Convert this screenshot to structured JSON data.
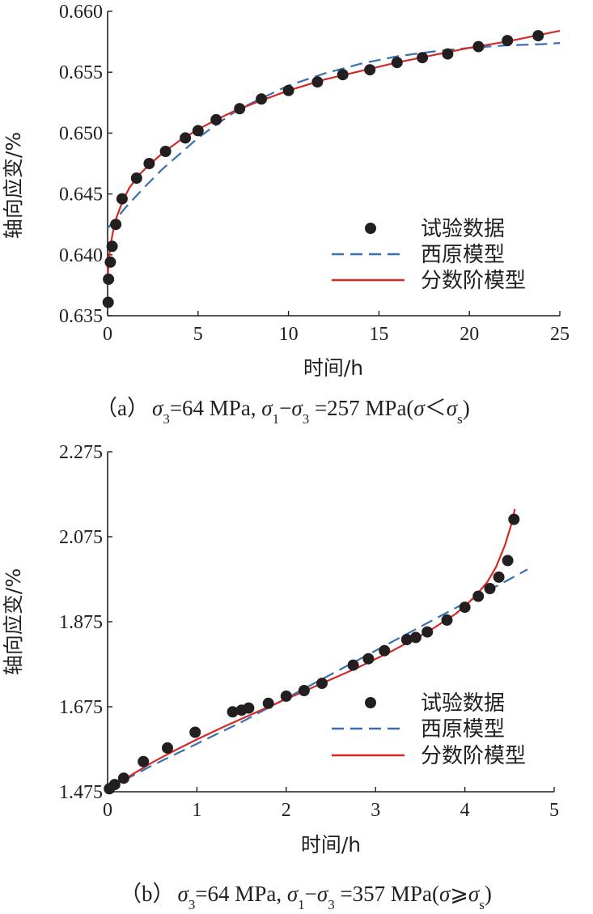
{
  "colors": {
    "data": "#231f20",
    "nishihara": "#3a6fb0",
    "fractional": "#d42a26",
    "axis": "#231f20"
  },
  "legend": {
    "data_label": "试验数据",
    "nishihara_label": "西原模型",
    "fractional_label": "分数阶模型"
  },
  "chart_data": [
    {
      "type": "scatter",
      "xlabel": "时间/h",
      "ylabel": "轴向应变/%",
      "xlim": [
        0,
        25
      ],
      "ylim": [
        0.635,
        0.66
      ],
      "xticks": [
        "0",
        "5",
        "10",
        "15",
        "20",
        "25"
      ],
      "yticks": [
        "0.635",
        "0.640",
        "0.645",
        "0.650",
        "0.655",
        "0.660"
      ],
      "legend_position": "lower-right",
      "caption": {
        "prefix": "（a）",
        "s3": "σ",
        "s3_sub": "3",
        "p1": "=64 MPa, ",
        "s1": "σ",
        "s1_sub": "1",
        "minus": "−",
        "s3b": "σ",
        "s3b_sub": "3",
        "p2": " =257 MPa(",
        "sig": "σ",
        "rel": "＜",
        "sigs": "σ",
        "sigs_sub": "s",
        "close": ")"
      },
      "series": [
        {
          "name": "试验数据",
          "x": [
            0.03,
            0.05,
            0.15,
            0.25,
            0.45,
            0.8,
            1.6,
            2.3,
            3.2,
            4.3,
            5.0,
            6.0,
            7.3,
            8.5,
            10.0,
            11.6,
            13.0,
            14.5,
            16.0,
            17.4,
            18.8,
            20.5,
            22.1,
            23.8
          ],
          "y": [
            0.6361,
            0.638,
            0.6394,
            0.6407,
            0.6425,
            0.6446,
            0.6463,
            0.6475,
            0.6485,
            0.6496,
            0.6502,
            0.6511,
            0.652,
            0.6528,
            0.6535,
            0.6542,
            0.6548,
            0.6552,
            0.6558,
            0.6562,
            0.6565,
            0.6571,
            0.6576,
            0.658
          ]
        },
        {
          "name": "西原模型",
          "x": [
            0,
            0.5,
            1,
            1.5,
            2,
            3,
            4,
            5,
            6,
            7,
            8,
            10,
            12,
            14,
            16,
            18,
            20,
            22,
            24,
            25
          ],
          "y": [
            0.6422,
            0.643,
            0.6439,
            0.6447,
            0.6455,
            0.647,
            0.6483,
            0.6496,
            0.6507,
            0.6517,
            0.6525,
            0.6539,
            0.6549,
            0.6557,
            0.6563,
            0.6567,
            0.657,
            0.6572,
            0.6573,
            0.6574
          ]
        },
        {
          "name": "分数阶模型",
          "x": [
            0,
            0.05,
            0.1,
            0.2,
            0.3,
            0.5,
            0.8,
            1.2,
            1.7,
            2.3,
            3,
            4,
            5,
            6,
            7,
            8,
            10,
            12,
            14,
            16,
            18,
            20,
            22,
            24,
            25
          ],
          "y": [
            0.638,
            0.6392,
            0.64,
            0.6411,
            0.6419,
            0.6431,
            0.6443,
            0.6455,
            0.6465,
            0.6474,
            0.6483,
            0.6494,
            0.6503,
            0.6511,
            0.6518,
            0.6524,
            0.6535,
            0.6544,
            0.6551,
            0.6558,
            0.6564,
            0.657,
            0.6575,
            0.6581,
            0.6584
          ]
        }
      ]
    },
    {
      "type": "scatter",
      "xlabel": "时间/h",
      "ylabel": "轴向应变/%",
      "xlim": [
        0,
        5
      ],
      "ylim": [
        1.475,
        2.275
      ],
      "xticks": [
        "0",
        "1",
        "2",
        "3",
        "4",
        "5"
      ],
      "yticks": [
        "1.475",
        "1.675",
        "1.875",
        "2.075",
        "2.275"
      ],
      "legend_position": "lower-right",
      "caption": {
        "prefix": "（b）",
        "s3": "σ",
        "s3_sub": "3",
        "p1": "=64 MPa, ",
        "s1": "σ",
        "s1_sub": "1",
        "minus": "−",
        "s3b": "σ",
        "s3b_sub": "3",
        "p2": " =357 MPa(",
        "sig": "σ",
        "rel": "⩾",
        "sigs": "σ",
        "sigs_sub": "s",
        "close": ")"
      },
      "series": [
        {
          "name": "试验数据",
          "x": [
            0.02,
            0.08,
            0.18,
            0.4,
            0.67,
            0.98,
            1.4,
            1.5,
            1.58,
            1.8,
            2.0,
            2.2,
            2.4,
            2.75,
            2.92,
            3.1,
            3.35,
            3.45,
            3.58,
            3.8,
            4.0,
            4.15,
            4.28,
            4.38,
            4.48,
            4.55
          ],
          "y": [
            1.482,
            1.492,
            1.507,
            1.546,
            1.578,
            1.615,
            1.663,
            1.667,
            1.672,
            1.683,
            1.7,
            1.713,
            1.73,
            1.773,
            1.788,
            1.807,
            1.833,
            1.838,
            1.851,
            1.879,
            1.909,
            1.935,
            1.953,
            1.98,
            2.019,
            2.116
          ]
        },
        {
          "name": "西原模型",
          "x": [
            0,
            0.5,
            1,
            1.5,
            2,
            2.5,
            3,
            3.5,
            4,
            4.5,
            4.7
          ],
          "y": [
            1.482,
            1.537,
            1.588,
            1.639,
            1.695,
            1.751,
            1.807,
            1.863,
            1.919,
            1.975,
            1.998
          ]
        },
        {
          "name": "分数阶模型",
          "x": [
            0,
            0.05,
            0.1,
            0.2,
            0.35,
            0.5,
            0.75,
            1.0,
            1.3,
            1.6,
            2.0,
            2.4,
            2.8,
            3.2,
            3.6,
            3.9,
            4.1,
            4.25,
            4.35,
            4.45,
            4.52,
            4.56
          ],
          "y": [
            1.478,
            1.486,
            1.493,
            1.506,
            1.525,
            1.544,
            1.572,
            1.598,
            1.628,
            1.656,
            1.693,
            1.73,
            1.767,
            1.808,
            1.853,
            1.894,
            1.931,
            1.968,
            2.004,
            2.056,
            2.104,
            2.14
          ]
        }
      ]
    }
  ]
}
